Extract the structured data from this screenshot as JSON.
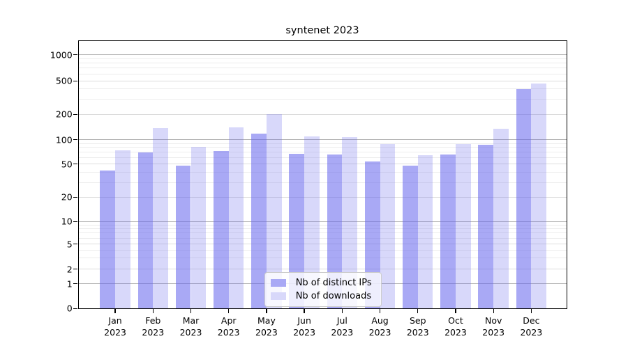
{
  "title": "syntenet 2023",
  "colors": {
    "bar_ips_solid": "#a9a9f5",
    "bar_downloads_solid": "#d8d8fa",
    "bar_ips_rgba": "rgba(99,99,237,0.55)",
    "bar_downloads_rgba": "rgba(99,99,237,0.25)",
    "grid_major": "#b3b3b3",
    "grid_minor": "#ececec",
    "axis": "#000000"
  },
  "legend": {
    "entries": [
      {
        "label": "Nb of distinct IPs",
        "color": "#a9a9f5"
      },
      {
        "label": "Nb of downloads",
        "color": "#d8d8fa"
      }
    ]
  },
  "axes": {
    "x_year": "2023",
    "x_months": [
      "Jan",
      "Feb",
      "Mar",
      "Apr",
      "May",
      "Jun",
      "Jul",
      "Aug",
      "Sep",
      "Oct",
      "Nov",
      "Dec"
    ],
    "y_ticks": [
      {
        "value": 0,
        "label": "0"
      },
      {
        "value": 1,
        "label": "1"
      },
      {
        "value": 2,
        "label": "2"
      },
      {
        "value": 5,
        "label": "5"
      },
      {
        "value": 10,
        "label": "10"
      },
      {
        "value": 20,
        "label": "20"
      },
      {
        "value": 50,
        "label": "50"
      },
      {
        "value": 100,
        "label": "100"
      },
      {
        "value": 200,
        "label": "200"
      },
      {
        "value": 500,
        "label": "500"
      },
      {
        "value": 1000,
        "label": "1000"
      }
    ],
    "y_minor_gridlines": [
      3,
      4,
      6,
      7,
      8,
      9,
      30,
      40,
      60,
      70,
      80,
      90,
      300,
      400,
      600,
      700,
      800,
      900
    ]
  },
  "chart_data": {
    "type": "bar",
    "title": "syntenet 2023",
    "categories": [
      "Jan 2023",
      "Feb 2023",
      "Mar 2023",
      "Apr 2023",
      "May 2023",
      "Jun 2023",
      "Jul 2023",
      "Aug 2023",
      "Sep 2023",
      "Oct 2023",
      "Nov 2023",
      "Dec 2023"
    ],
    "series": [
      {
        "name": "Nb of distinct IPs",
        "color": "#a9a9f5",
        "values": [
          42,
          69,
          48,
          73,
          117,
          67,
          66,
          54,
          48,
          65,
          87,
          400
        ]
      },
      {
        "name": "Nb of downloads",
        "color": "#d8d8fa",
        "values": [
          74,
          137,
          81,
          141,
          200,
          110,
          107,
          89,
          64,
          88,
          135,
          465
        ]
      }
    ],
    "xlabel": "",
    "ylabel": "",
    "yscale": "symlog",
    "ylim": [
      0,
      1450
    ],
    "y_tick_values": [
      0,
      1,
      2,
      5,
      10,
      20,
      50,
      100,
      200,
      500,
      1000
    ],
    "grid": "horizontal, major and minor",
    "legend_position": "lower center"
  }
}
